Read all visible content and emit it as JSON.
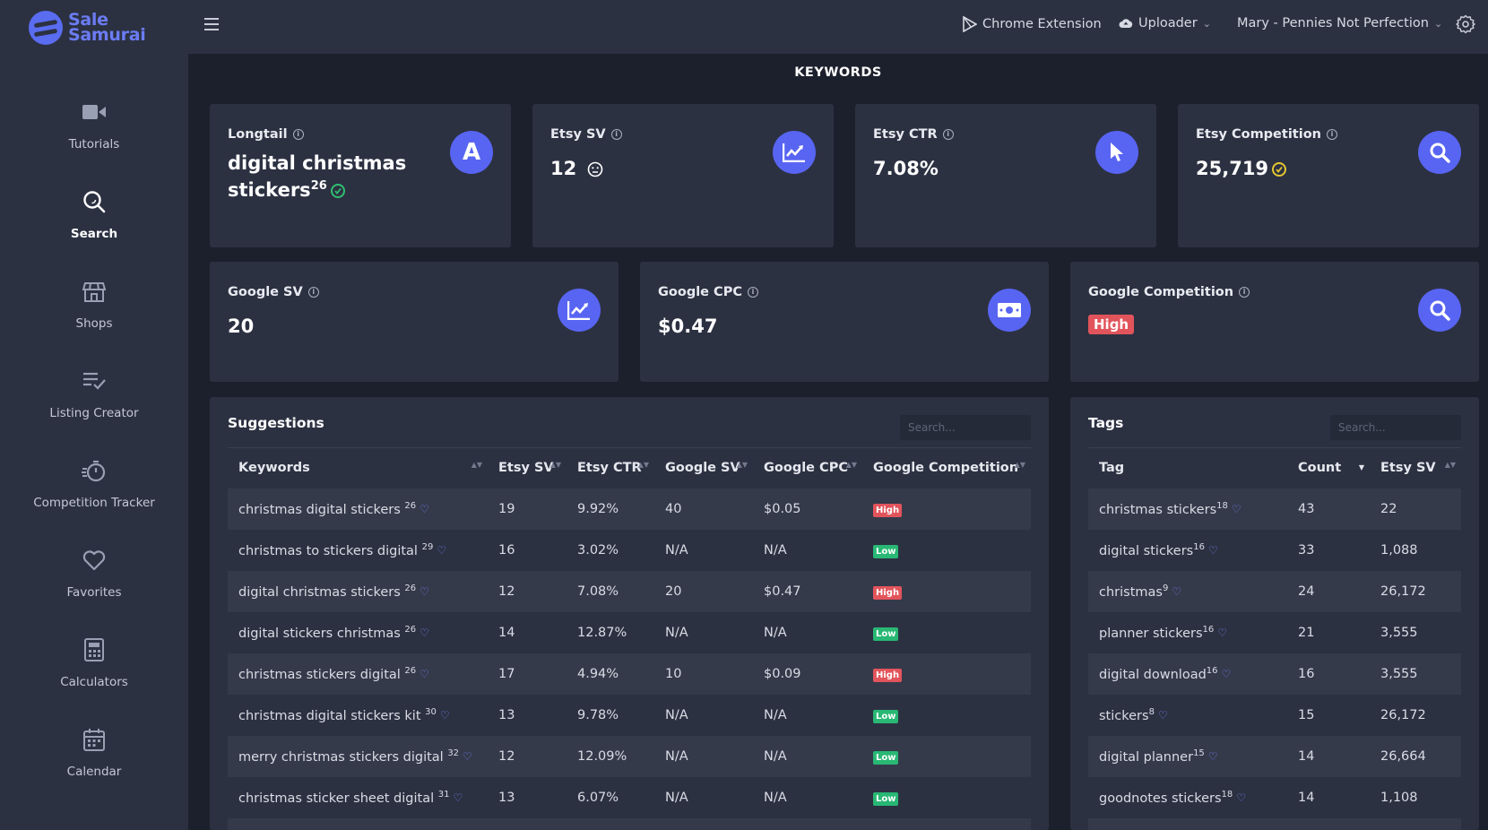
{
  "brand": {
    "line1": "Sale",
    "line2": "Samurai"
  },
  "sidebar": {
    "items": [
      {
        "label": "Tutorials",
        "icon": "video-camera-icon"
      },
      {
        "label": "Search",
        "icon": "search-icon",
        "active": true
      },
      {
        "label": "Shops",
        "icon": "shop-icon"
      },
      {
        "label": "Listing Creator",
        "icon": "list-check-icon"
      },
      {
        "label": "Competition Tracker",
        "icon": "stopwatch-icon"
      },
      {
        "label": "Favorites",
        "icon": "heart-icon"
      },
      {
        "label": "Calculators",
        "icon": "calculator-icon"
      },
      {
        "label": "Calendar",
        "icon": "calendar-icon"
      }
    ]
  },
  "topbar": {
    "chrome_extension": "Chrome Extension",
    "uploader": "Uploader",
    "account": "Mary - Pennies Not Perfection"
  },
  "page_title": "KEYWORDS",
  "cards": {
    "longtail": {
      "label": "Longtail",
      "value": "digital christmas stickers",
      "sup": "26",
      "icon_letter": "A"
    },
    "etsy_sv": {
      "label": "Etsy SV",
      "value": "12"
    },
    "etsy_ctr": {
      "label": "Etsy CTR",
      "value": "7.08%"
    },
    "etsy_competition": {
      "label": "Etsy Competition",
      "value": "25,719"
    },
    "google_sv": {
      "label": "Google SV",
      "value": "20"
    },
    "google_cpc": {
      "label": "Google CPC",
      "value": "$0.47"
    },
    "google_competition": {
      "label": "Google Competition",
      "value": "High"
    }
  },
  "colors": {
    "accent": "#5865f2",
    "high": "#e2545b",
    "low": "#28b874",
    "ok_green": "#2fbf71",
    "ok_yellow": "#e5c730"
  },
  "suggestions": {
    "title": "Suggestions",
    "search_placeholder": "Search...",
    "columns": [
      "Keywords",
      "Etsy SV",
      "Etsy CTR",
      "Google SV",
      "Google CPC",
      "Google Competition"
    ],
    "rows": [
      {
        "keyword": "christmas digital stickers",
        "sup": "26",
        "etsy_sv": "19",
        "etsy_ctr": "9.92%",
        "google_sv": "40",
        "google_cpc": "$0.05",
        "competition": "High"
      },
      {
        "keyword": "christmas to stickers digital",
        "sup": "29",
        "etsy_sv": "16",
        "etsy_ctr": "3.02%",
        "google_sv": "N/A",
        "google_cpc": "N/A",
        "competition": "Low"
      },
      {
        "keyword": "digital christmas stickers",
        "sup": "26",
        "etsy_sv": "12",
        "etsy_ctr": "7.08%",
        "google_sv": "20",
        "google_cpc": "$0.47",
        "competition": "High"
      },
      {
        "keyword": "digital stickers christmas",
        "sup": "26",
        "etsy_sv": "14",
        "etsy_ctr": "12.87%",
        "google_sv": "N/A",
        "google_cpc": "N/A",
        "competition": "Low"
      },
      {
        "keyword": "christmas stickers digital",
        "sup": "26",
        "etsy_sv": "17",
        "etsy_ctr": "4.94%",
        "google_sv": "10",
        "google_cpc": "$0.09",
        "competition": "High"
      },
      {
        "keyword": "christmas digital stickers kit",
        "sup": "30",
        "etsy_sv": "13",
        "etsy_ctr": "9.78%",
        "google_sv": "N/A",
        "google_cpc": "N/A",
        "competition": "Low"
      },
      {
        "keyword": "merry christmas stickers digital",
        "sup": "32",
        "etsy_sv": "12",
        "etsy_ctr": "12.09%",
        "google_sv": "N/A",
        "google_cpc": "N/A",
        "competition": "Low"
      },
      {
        "keyword": "christmas sticker sheet digital",
        "sup": "31",
        "etsy_sv": "13",
        "etsy_ctr": "6.07%",
        "google_sv": "N/A",
        "google_cpc": "N/A",
        "competition": "Low"
      }
    ]
  },
  "tags": {
    "title": "Tags",
    "search_placeholder": "Search...",
    "columns": [
      "Tag",
      "Count",
      "Etsy SV"
    ],
    "rows": [
      {
        "tag": "christmas stickers",
        "sup": "18",
        "count": "43",
        "etsy_sv": "22"
      },
      {
        "tag": "digital stickers",
        "sup": "16",
        "count": "33",
        "etsy_sv": "1,088"
      },
      {
        "tag": "christmas",
        "sup": "9",
        "count": "24",
        "etsy_sv": "26,172"
      },
      {
        "tag": "planner stickers",
        "sup": "16",
        "count": "21",
        "etsy_sv": "3,555"
      },
      {
        "tag": "digital download",
        "sup": "16",
        "count": "16",
        "etsy_sv": "3,555"
      },
      {
        "tag": "stickers",
        "sup": "8",
        "count": "15",
        "etsy_sv": "26,172"
      },
      {
        "tag": "digital planner",
        "sup": "15",
        "count": "14",
        "etsy_sv": "26,664"
      },
      {
        "tag": "goodnotes stickers",
        "sup": "18",
        "count": "14",
        "etsy_sv": "1,108"
      }
    ]
  }
}
